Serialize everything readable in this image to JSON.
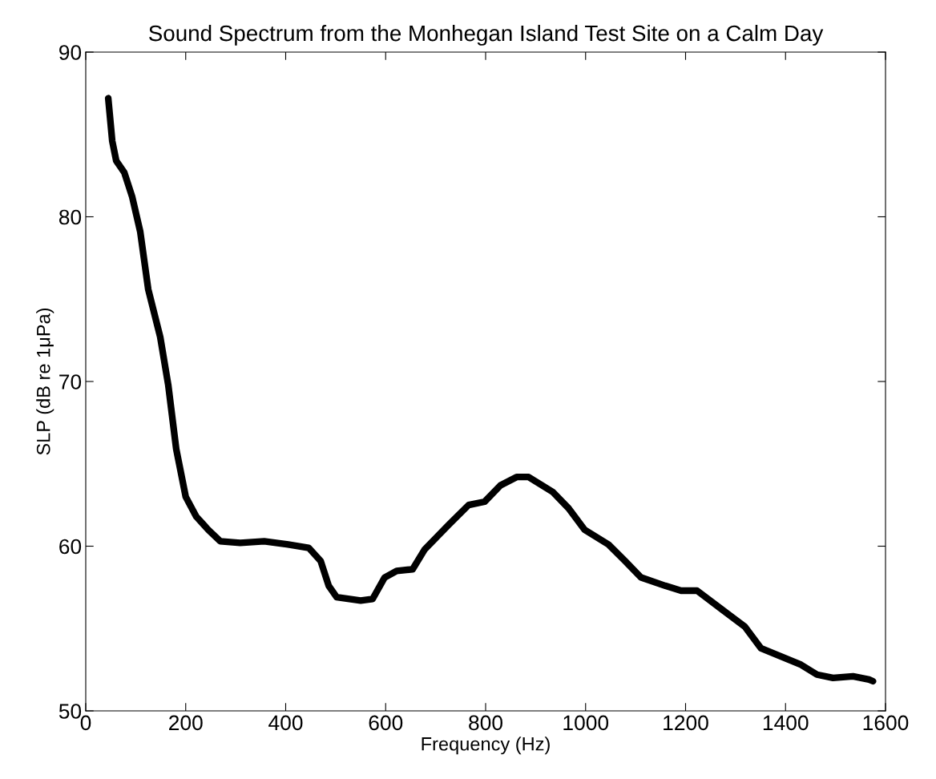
{
  "chart_data": {
    "type": "line",
    "title": "Sound Spectrum from the Monhegan Island Test Site on a Calm Day",
    "xlabel": "Frequency (Hz)",
    "ylabel": "SLP (dB re 1μPa)",
    "xlim": [
      0,
      1600
    ],
    "ylim": [
      50,
      90
    ],
    "xticks": [
      0,
      200,
      400,
      600,
      800,
      1000,
      1200,
      1400,
      1600
    ],
    "yticks": [
      50,
      60,
      70,
      80,
      90
    ],
    "grid": false,
    "legend": false,
    "series": [
      {
        "color": "#000000",
        "x": [
          45,
          53,
          61,
          77,
          93,
          109,
          125,
          149,
          165,
          181,
          200,
          221,
          245,
          269,
          309,
          357,
          405,
          446,
          470,
          486,
          502,
          550,
          574,
          598,
          622,
          654,
          678,
          726,
          766,
          798,
          830,
          862,
          886,
          934,
          966,
          998,
          1046,
          1079,
          1111,
          1159,
          1191,
          1223,
          1271,
          1319,
          1351,
          1391,
          1431,
          1463,
          1495,
          1535,
          1567,
          1575
        ],
        "values": [
          87.2,
          84.6,
          83.4,
          82.7,
          81.2,
          79.1,
          75.6,
          72.7,
          69.8,
          65.9,
          63.0,
          61.8,
          61.0,
          60.3,
          60.2,
          60.3,
          60.1,
          59.9,
          59.1,
          57.6,
          56.9,
          56.7,
          56.8,
          58.1,
          58.5,
          58.6,
          59.8,
          61.3,
          62.5,
          62.7,
          63.7,
          64.2,
          64.2,
          63.3,
          62.3,
          61.0,
          60.1,
          59.1,
          58.1,
          57.6,
          57.3,
          57.3,
          56.2,
          55.1,
          53.8,
          53.3,
          52.8,
          52.2,
          52.0,
          52.1,
          51.9,
          51.8
        ]
      }
    ]
  }
}
